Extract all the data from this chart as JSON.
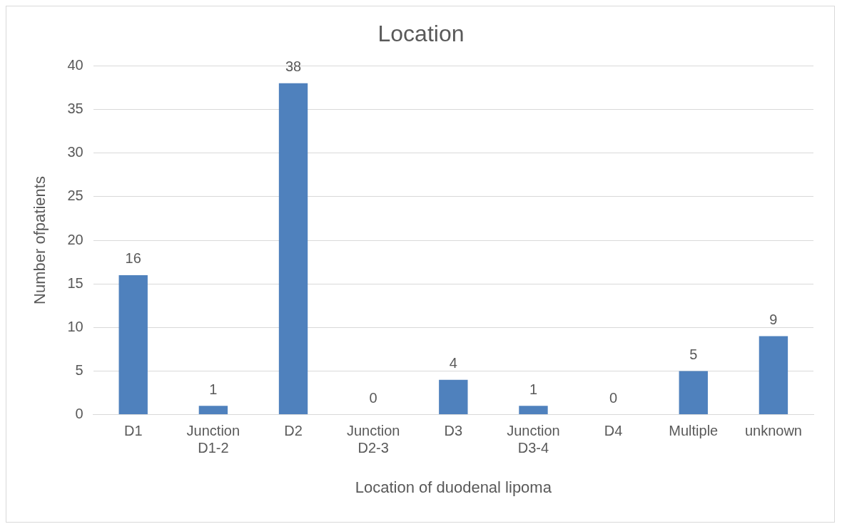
{
  "chart_data": {
    "type": "bar",
    "title": "Location",
    "xlabel": "Location of duodenal lipoma",
    "ylabel": "Number ofpatients",
    "categories": [
      "D1",
      "Junction D1-2",
      "D2",
      "Junction D2-3",
      "D3",
      "Junction D3-4",
      "D4",
      "Multiple",
      "unknown"
    ],
    "values": [
      16,
      1,
      38,
      0,
      4,
      1,
      0,
      5,
      9
    ],
    "color": "#4f81bd",
    "ylim": [
      0,
      40
    ],
    "yticks": [
      0,
      5,
      10,
      15,
      20,
      25,
      30,
      35,
      40
    ],
    "grid": "y",
    "data_labels": true,
    "legend": false
  }
}
